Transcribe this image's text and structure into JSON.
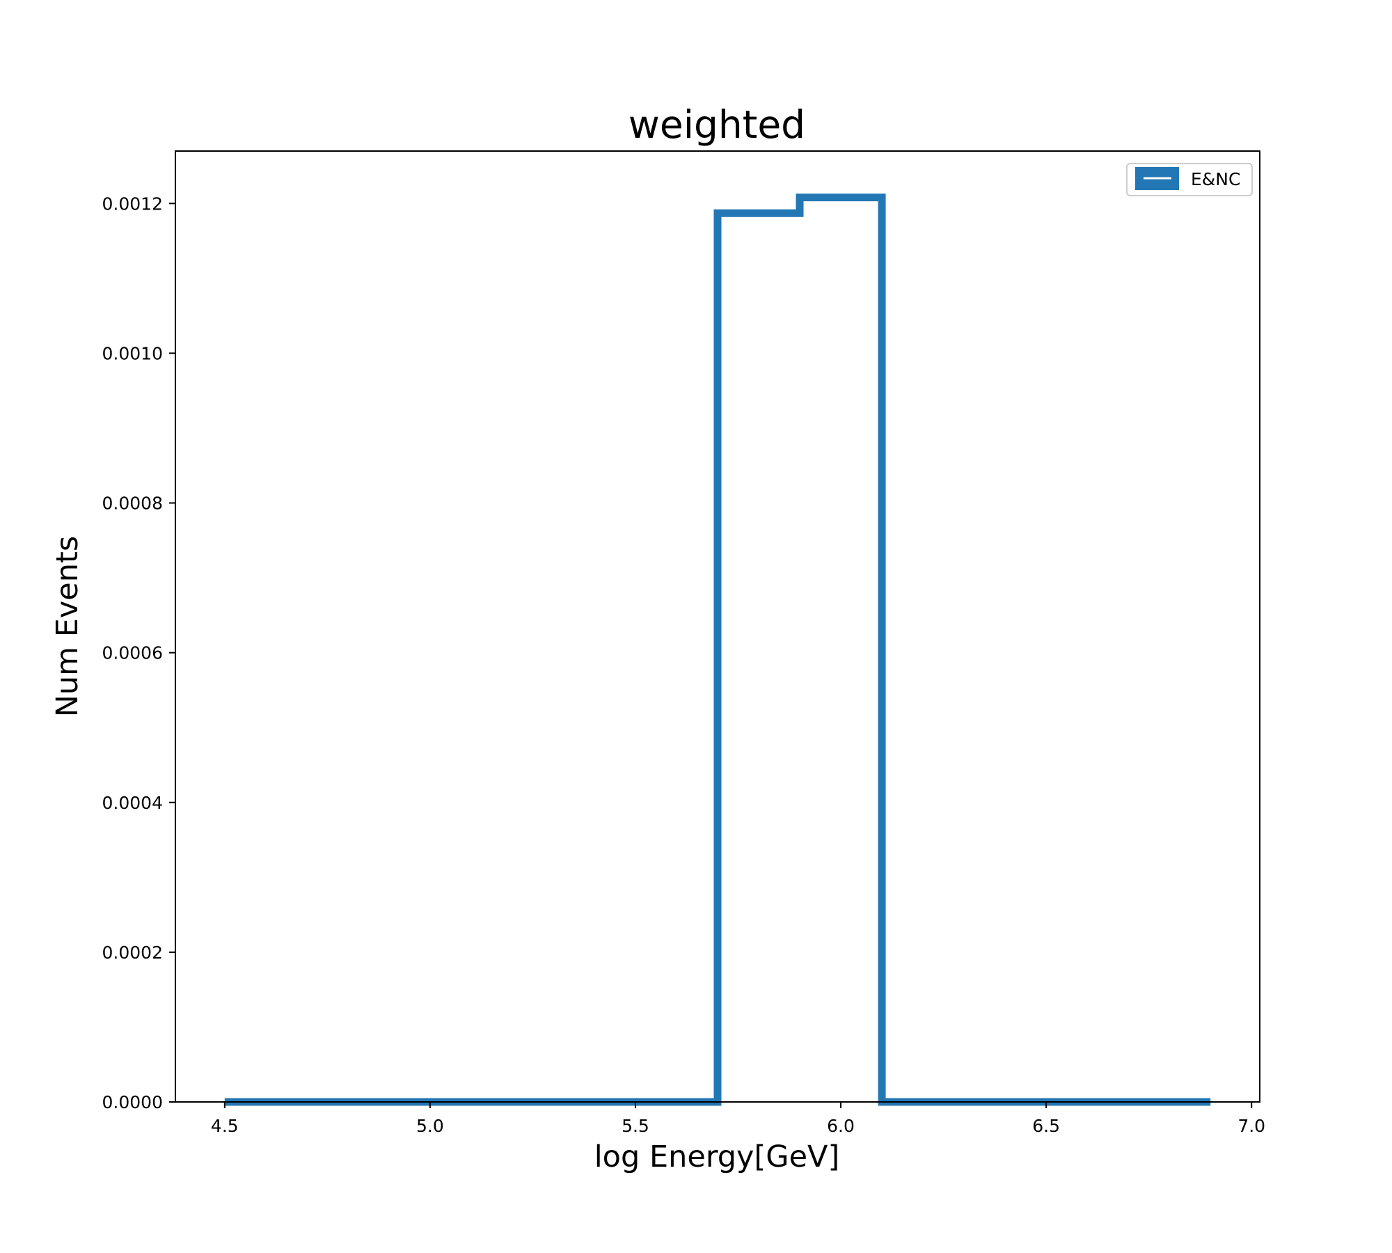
{
  "chart_data": {
    "type": "step",
    "title": "weighted",
    "xlabel": "log Energy[GeV]",
    "ylabel": "Num Events",
    "xlim": [
      4.38,
      7.02
    ],
    "ylim": [
      0,
      0.00127
    ],
    "xticks": [
      {
        "value": 4.5,
        "label": "4.5"
      },
      {
        "value": 5.0,
        "label": "5.0"
      },
      {
        "value": 5.5,
        "label": "5.5"
      },
      {
        "value": 6.0,
        "label": "6.0"
      },
      {
        "value": 6.5,
        "label": "6.5"
      },
      {
        "value": 7.0,
        "label": "7.0"
      }
    ],
    "yticks": [
      {
        "value": 0.0,
        "label": "0.0000"
      },
      {
        "value": 0.0002,
        "label": "0.0002"
      },
      {
        "value": 0.0004,
        "label": "0.0004"
      },
      {
        "value": 0.0006,
        "label": "0.0006"
      },
      {
        "value": 0.0008,
        "label": "0.0008"
      },
      {
        "value": 0.001,
        "label": "0.0010"
      },
      {
        "value": 0.0012,
        "label": "0.0012"
      }
    ],
    "grid": false,
    "legend_position": "top-right",
    "series": [
      {
        "name": "E&NC",
        "color": "#2377b4",
        "bin_edges": [
          4.5,
          4.7,
          4.9,
          5.1,
          5.3,
          5.5,
          5.7,
          5.9,
          6.1,
          6.3,
          6.5,
          6.7,
          6.9
        ],
        "values": [
          0,
          0,
          0,
          0,
          0,
          0,
          0.001187,
          0.001208,
          0,
          0,
          0,
          0
        ]
      }
    ]
  }
}
